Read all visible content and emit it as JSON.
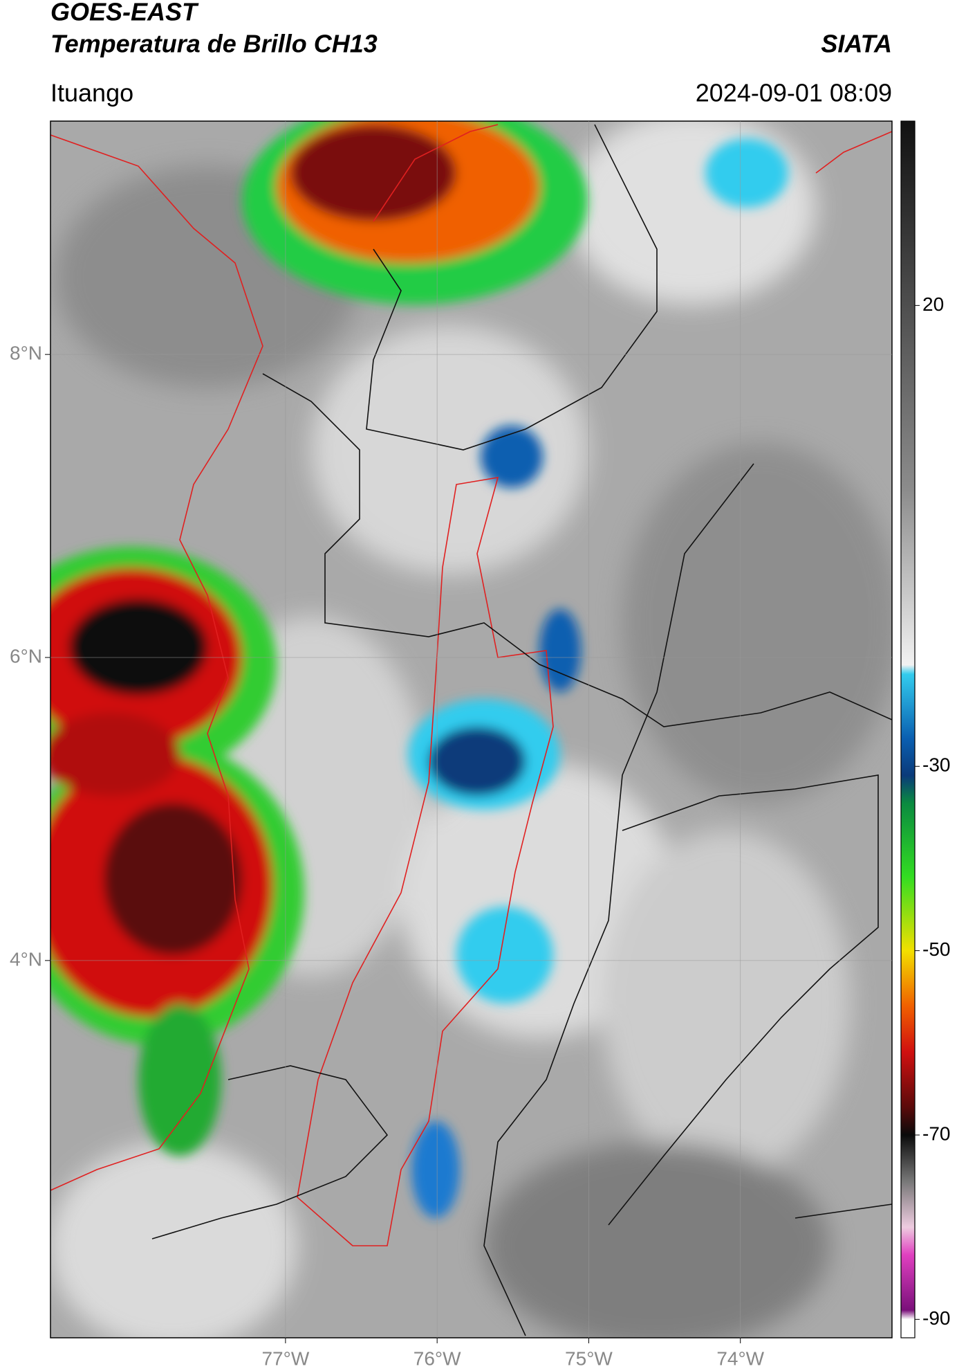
{
  "chart_data": {
    "type": "map",
    "title": "GOES-EAST",
    "subtitle": "Temperatura de Brillo CH13",
    "source": "SIATA",
    "location": "Ituango",
    "date": "2024-09-01 08:09",
    "xlim": [
      -78.55,
      -73.0
    ],
    "ylim": [
      1.51,
      9.54
    ],
    "xticks": [
      {
        "value": -77,
        "label": "77°W"
      },
      {
        "value": -76,
        "label": "76°W"
      },
      {
        "value": -75,
        "label": "75°W"
      },
      {
        "value": -74,
        "label": "74°W"
      }
    ],
    "yticks": [
      {
        "value": 8,
        "label": "8°N"
      },
      {
        "value": 6,
        "label": "6°N"
      },
      {
        "value": 4,
        "label": "4°N"
      }
    ],
    "grid": true,
    "colorbar": {
      "lim": [
        -92,
        40
      ],
      "ticks": [
        20,
        -30,
        -50,
        -70,
        -90
      ],
      "colormap": [
        {
          "value": 40,
          "color": "#111111"
        },
        {
          "value": 0,
          "color": "#8c8c8c"
        },
        {
          "value": -19,
          "color": "#f2f2f2"
        },
        {
          "value": -20,
          "color": "#33ccee"
        },
        {
          "value": -27,
          "color": "#0a5fb0"
        },
        {
          "value": -31,
          "color": "#0a3a7a"
        },
        {
          "value": -34,
          "color": "#0a8a40"
        },
        {
          "value": -42,
          "color": "#33dd22"
        },
        {
          "value": -50,
          "color": "#f2e000"
        },
        {
          "value": -56,
          "color": "#f06000"
        },
        {
          "value": -61,
          "color": "#d01010"
        },
        {
          "value": -67,
          "color": "#5a0a0a"
        },
        {
          "value": -70,
          "color": "#0a0a0a"
        },
        {
          "value": -75,
          "color": "#777777"
        },
        {
          "value": -80,
          "color": "#eecce0"
        },
        {
          "value": -83,
          "color": "#e040c0"
        },
        {
          "value": -89,
          "color": "#7a107a"
        },
        {
          "value": -90,
          "color": "#ffffff"
        }
      ]
    }
  }
}
